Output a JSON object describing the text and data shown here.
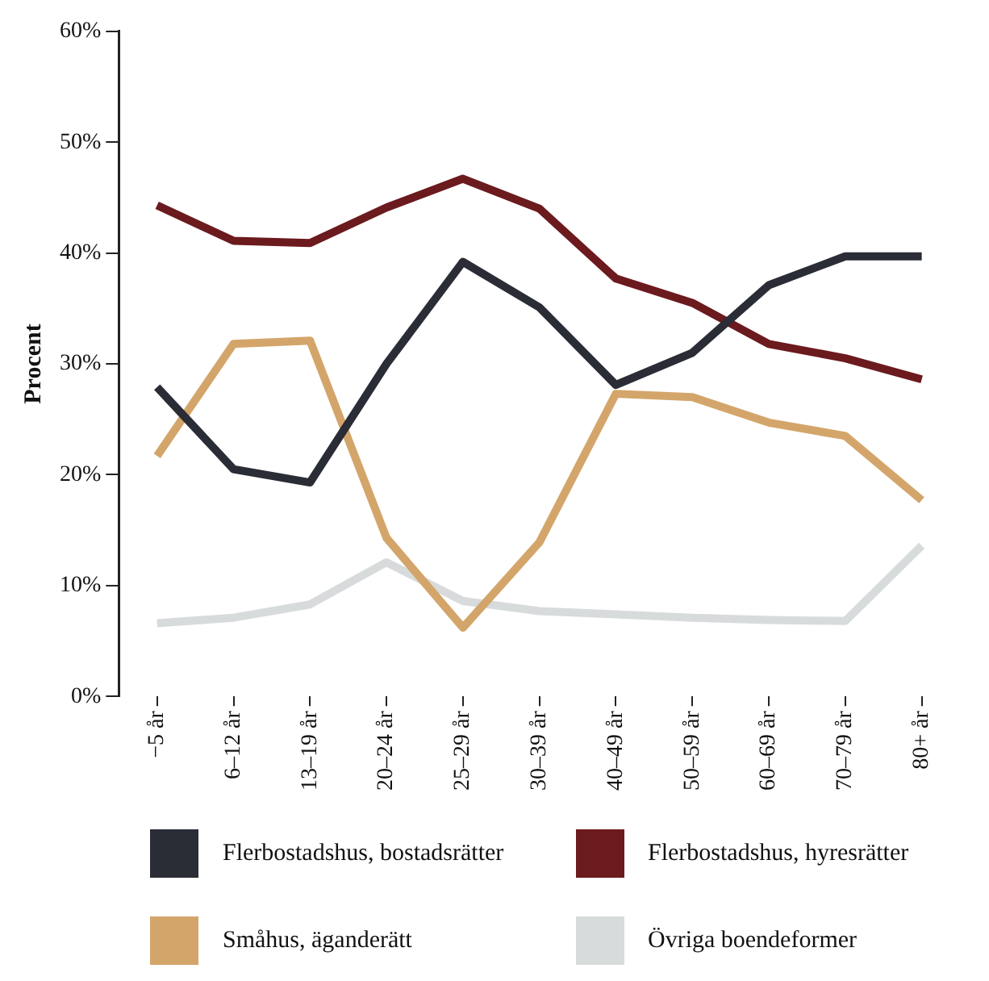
{
  "chart_data": {
    "type": "line",
    "ylabel": "Procent",
    "categories": [
      "−5 år",
      "6–12 år",
      "13–19 år",
      "20–24 år",
      "25–29 år",
      "30–39 år",
      "40–49 år",
      "50–59 år",
      "60–69 år",
      "70–79 år",
      "80+ år"
    ],
    "series": [
      {
        "name": "Flerbostadshus, bostadsrätter",
        "color": "#2a2c36",
        "values": [
          27.9,
          20.5,
          19.3,
          30,
          39.2,
          35.1,
          28.1,
          31,
          37.1,
          39.7,
          39.7
        ]
      },
      {
        "name": "Flerbostadshus, hyresrätter",
        "color": "#6b1a1e",
        "values": [
          44.3,
          41.1,
          40.9,
          44.1,
          46.7,
          44,
          37.7,
          35.5,
          31.8,
          30.5,
          28.6
        ]
      },
      {
        "name": "Småhus, äganderätt",
        "color": "#d4a56a",
        "values": [
          21.7,
          31.8,
          32.1,
          14.3,
          6.2,
          13.9,
          27.3,
          27,
          24.7,
          23.5,
          17.7
        ]
      },
      {
        "name": "Övriga boendeformer",
        "color": "#d8dbdb",
        "values": [
          6.6,
          7.1,
          8.3,
          12.1,
          8.6,
          7.7,
          7.4,
          7.1,
          6.9,
          6.8,
          13.6
        ]
      }
    ],
    "ylim": [
      0,
      60
    ],
    "yticks": [
      {
        "value": 0,
        "label": "0%"
      },
      {
        "value": 10,
        "label": "10%"
      },
      {
        "value": 20,
        "label": "20%"
      },
      {
        "value": 30,
        "label": "30%"
      },
      {
        "value": 40,
        "label": "40%"
      },
      {
        "value": 50,
        "label": "50%"
      },
      {
        "value": 60,
        "label": "60%"
      }
    ],
    "grid": false,
    "legend": "bottom",
    "marker": "none",
    "line_style": "solid"
  }
}
